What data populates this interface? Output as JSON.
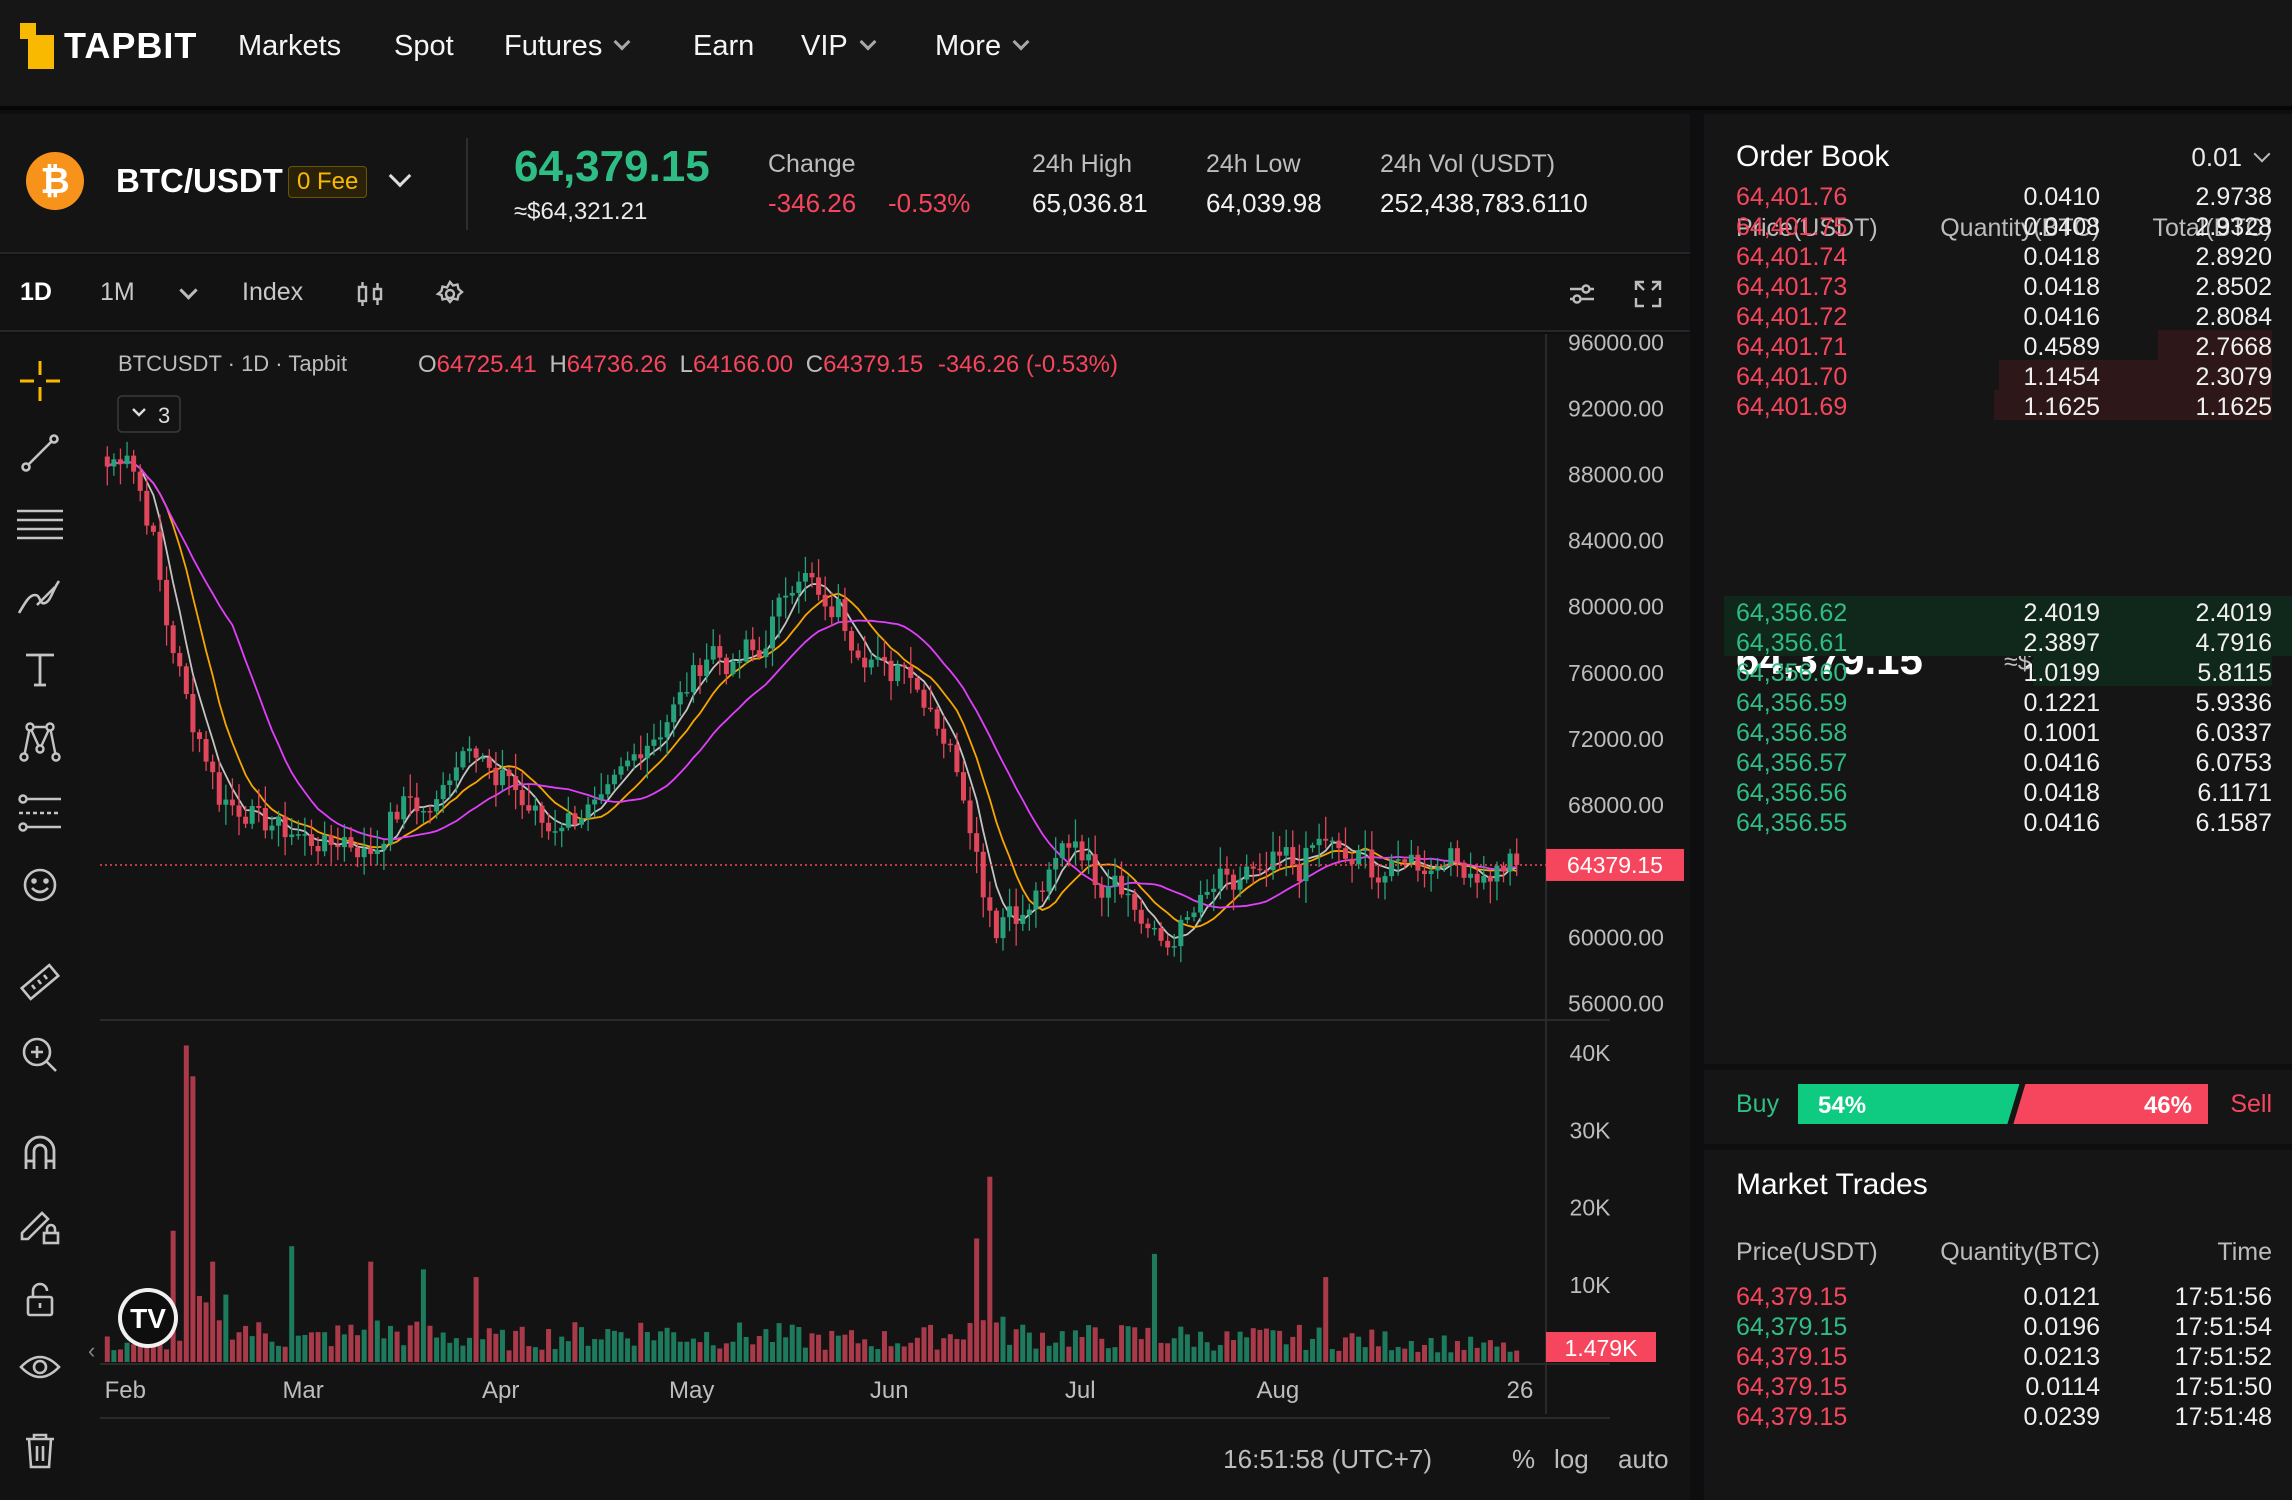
{
  "brand": {
    "name": "TAPBIT"
  },
  "nav": [
    {
      "label": "Markets",
      "dropdown": false
    },
    {
      "label": "Spot",
      "dropdown": false
    },
    {
      "label": "Futures",
      "dropdown": true
    },
    {
      "label": "Earn",
      "dropdown": false
    },
    {
      "label": "VIP",
      "dropdown": true
    },
    {
      "label": "More",
      "dropdown": true
    }
  ],
  "ticker": {
    "coin_symbol": "₿",
    "pair": "BTC/USDT",
    "fee_badge": "0 Fee",
    "last_price": "64,379.15",
    "last_usd": "≈$64,321.21",
    "change_label": "Change",
    "change_abs": "-346.26",
    "change_pct": "-0.53%",
    "high_label": "24h High",
    "high": "65,036.81",
    "low_label": "24h Low",
    "low": "64,039.98",
    "vol_label": "24h Vol (USDT)",
    "vol": "252,438,783.6110"
  },
  "toolbar": {
    "interval_1d": "1D",
    "interval_1m": "1M",
    "index": "Index"
  },
  "chart": {
    "legend_symbol": "BTCUSDT",
    "legend_interval": "1D",
    "legend_exchange": "Tapbit",
    "ohlc": {
      "o_label": "O",
      "o": "64725.41",
      "h_label": "H",
      "h": "64736.26",
      "l_label": "L",
      "l": "64166.00",
      "c_label": "C",
      "c": "64379.15",
      "chg": "-346.26 (-0.53%)"
    },
    "indicators_count": "3",
    "current_price_label": "64379.15",
    "current_volume_label": "1.479K",
    "time_label": "16:51:58 (UTC+7)",
    "bottom_controls": [
      "%",
      "log",
      "auto"
    ]
  },
  "chart_data": {
    "type": "candlestick",
    "symbol": "BTCUSDT",
    "interval": "1D",
    "price_ticks": [
      56000,
      60000,
      64000,
      68000,
      72000,
      76000,
      80000,
      84000,
      88000,
      92000,
      96000
    ],
    "price_tick_labels": [
      "56000.00",
      "60000.00",
      "68000.00",
      "72000.00",
      "76000.00",
      "80000.00",
      "84000.00",
      "88000.00",
      "92000.00",
      "96000.00"
    ],
    "ylim": [
      55000,
      96500
    ],
    "volume_ticks": [
      "10K",
      "20K",
      "30K",
      "40K"
    ],
    "volume_ylim": [
      0,
      43000
    ],
    "x_labels": [
      "Feb",
      "Mar",
      "Apr",
      "May",
      "Jun",
      "Jul",
      "Aug",
      "26"
    ],
    "current_price": 64379.15,
    "current_volume": 1479,
    "ma_series": [
      {
        "color": "#ffffff",
        "period": 5
      },
      {
        "color": "#f7a600",
        "period": 10
      },
      {
        "color": "#e040fb",
        "period": 20
      }
    ],
    "close_path": [
      [
        0,
        88500
      ],
      [
        3,
        89500
      ],
      [
        5,
        87000
      ],
      [
        7,
        84000
      ],
      [
        9,
        79000
      ],
      [
        11,
        76000
      ],
      [
        13,
        73000
      ],
      [
        15,
        71000
      ],
      [
        17,
        68500
      ],
      [
        19,
        68000
      ],
      [
        21,
        67500
      ],
      [
        24,
        67000
      ],
      [
        27,
        66500
      ],
      [
        30,
        66000
      ],
      [
        33,
        65500
      ],
      [
        36,
        66000
      ],
      [
        39,
        65000
      ],
      [
        41,
        65500
      ],
      [
        43,
        67000
      ],
      [
        46,
        68500
      ],
      [
        48,
        67500
      ],
      [
        50,
        68000
      ],
      [
        52,
        70000
      ],
      [
        55,
        72000
      ],
      [
        57,
        71000
      ],
      [
        59,
        69000
      ],
      [
        61,
        70000
      ],
      [
        63,
        68000
      ],
      [
        65,
        67500
      ],
      [
        67,
        66500
      ],
      [
        69,
        67000
      ],
      [
        72,
        67500
      ],
      [
        75,
        68000
      ],
      [
        78,
        70000
      ],
      [
        81,
        71500
      ],
      [
        84,
        72500
      ],
      [
        87,
        74500
      ],
      [
        90,
        76500
      ],
      [
        92,
        77500
      ],
      [
        95,
        76000
      ],
      [
        97,
        77500
      ],
      [
        99,
        77000
      ],
      [
        101,
        79000
      ],
      [
        103,
        81000
      ],
      [
        105,
        82000
      ],
      [
        107,
        81500
      ],
      [
        109,
        79500
      ],
      [
        111,
        80000
      ],
      [
        113,
        78000
      ],
      [
        115,
        77000
      ],
      [
        117,
        76500
      ],
      [
        119,
        76000
      ],
      [
        121,
        77000
      ],
      [
        123,
        75000
      ],
      [
        125,
        74000
      ],
      [
        127,
        72000
      ],
      [
        129,
        70500
      ],
      [
        131,
        67000
      ],
      [
        133,
        63000
      ],
      [
        135,
        60500
      ],
      [
        137,
        62000
      ],
      [
        139,
        61000
      ],
      [
        141,
        62500
      ],
      [
        143,
        63500
      ],
      [
        145,
        65500
      ],
      [
        147,
        66000
      ],
      [
        149,
        64500
      ],
      [
        151,
        63000
      ],
      [
        153,
        64000
      ],
      [
        155,
        62500
      ],
      [
        157,
        61000
      ],
      [
        159,
        60000
      ],
      [
        161,
        59500
      ],
      [
        163,
        60500
      ],
      [
        165,
        61500
      ],
      [
        167,
        62500
      ],
      [
        169,
        63500
      ],
      [
        171,
        63000
      ],
      [
        173,
        64000
      ],
      [
        175,
        63500
      ],
      [
        177,
        64500
      ],
      [
        179,
        65000
      ],
      [
        181,
        64000
      ],
      [
        183,
        65500
      ],
      [
        185,
        66000
      ],
      [
        187,
        65000
      ],
      [
        189,
        64500
      ],
      [
        191,
        65000
      ],
      [
        193,
        63500
      ],
      [
        195,
        64000
      ],
      [
        197,
        65000
      ],
      [
        199,
        64500
      ],
      [
        201,
        64000
      ],
      [
        203,
        65000
      ],
      [
        205,
        64500
      ],
      [
        207,
        64000
      ],
      [
        209,
        63500
      ],
      [
        211,
        64000
      ],
      [
        213,
        64500
      ],
      [
        214,
        64379
      ]
    ],
    "volume_profile": [
      [
        0,
        2000
      ],
      [
        10,
        2500
      ],
      [
        14,
        5000
      ],
      [
        17,
        7000
      ],
      [
        20,
        4000
      ],
      [
        24,
        3000
      ],
      [
        30,
        2500
      ],
      [
        40,
        3500
      ],
      [
        50,
        3000
      ],
      [
        60,
        2500
      ],
      [
        70,
        3000
      ],
      [
        80,
        3500
      ],
      [
        90,
        3000
      ],
      [
        100,
        3000
      ],
      [
        110,
        2500
      ],
      [
        120,
        2500
      ],
      [
        128,
        3000
      ],
      [
        132,
        5000
      ],
      [
        136,
        3500
      ],
      [
        140,
        3000
      ],
      [
        150,
        2800
      ],
      [
        160,
        3000
      ],
      [
        170,
        2500
      ],
      [
        180,
        2800
      ],
      [
        190,
        2500
      ],
      [
        200,
        2300
      ],
      [
        214,
        1500
      ]
    ],
    "volume_spikes": [
      [
        10,
        17000
      ],
      [
        12,
        41000
      ],
      [
        13,
        37000
      ],
      [
        16,
        13000
      ],
      [
        28,
        15000
      ],
      [
        40,
        13000
      ],
      [
        48,
        12000
      ],
      [
        56,
        11000
      ],
      [
        132,
        16000
      ],
      [
        134,
        24000
      ],
      [
        159,
        14000
      ],
      [
        185,
        11000
      ]
    ]
  },
  "orderbook": {
    "title": "Order Book",
    "precision": "0.01",
    "headers": {
      "price": "Price(USDT)",
      "qty": "Quantity(BTC)",
      "total": "Total(BTC)"
    },
    "asks": [
      {
        "price": "64,401.76",
        "qty": "0.0410",
        "total": "2.9738",
        "depth": 0
      },
      {
        "price": "64,401.75",
        "qty": "0.0408",
        "total": "2.9328",
        "depth": 0
      },
      {
        "price": "64,401.74",
        "qty": "0.0418",
        "total": "2.8920",
        "depth": 0
      },
      {
        "price": "64,401.73",
        "qty": "0.0418",
        "total": "2.8502",
        "depth": 0
      },
      {
        "price": "64,401.72",
        "qty": "0.0416",
        "total": "2.8084",
        "depth": 0
      },
      {
        "price": "64,401.71",
        "qty": "0.4589",
        "total": "2.7668",
        "depth": 0.2
      },
      {
        "price": "64,401.70",
        "qty": "1.1454",
        "total": "2.3079",
        "depth": 0.48
      },
      {
        "price": "64,401.69",
        "qty": "1.1625",
        "total": "1.1625",
        "depth": 0.49
      }
    ],
    "mid_price": "64,379.15",
    "mid_usd": "≈$64,321.21",
    "bids": [
      {
        "price": "64,356.62",
        "qty": "2.4019",
        "total": "2.4019",
        "depth": 1.0
      },
      {
        "price": "64,356.61",
        "qty": "2.3897",
        "total": "4.7916",
        "depth": 1.0
      },
      {
        "price": "64,356.60",
        "qty": "1.0199",
        "total": "5.8115",
        "depth": 0.42
      },
      {
        "price": "64,356.59",
        "qty": "0.1221",
        "total": "5.9336",
        "depth": 0
      },
      {
        "price": "64,356.58",
        "qty": "0.1001",
        "total": "6.0337",
        "depth": 0
      },
      {
        "price": "64,356.57",
        "qty": "0.0416",
        "total": "6.0753",
        "depth": 0
      },
      {
        "price": "64,356.56",
        "qty": "0.0418",
        "total": "6.1171",
        "depth": 0
      },
      {
        "price": "64,356.55",
        "qty": "0.0416",
        "total": "6.1587",
        "depth": 0
      }
    ],
    "buy_label": "Buy",
    "sell_label": "Sell",
    "buy_pct": "54%",
    "sell_pct": "46%",
    "buy_fraction": 0.54
  },
  "trades": {
    "title": "Market Trades",
    "headers": {
      "price": "Price(USDT)",
      "qty": "Quantity(BTC)",
      "time": "Time"
    },
    "rows": [
      {
        "price": "64,379.15",
        "qty": "0.0121",
        "time": "17:51:56",
        "side": "sell"
      },
      {
        "price": "64,379.15",
        "qty": "0.0196",
        "time": "17:51:54",
        "side": "buy"
      },
      {
        "price": "64,379.15",
        "qty": "0.0213",
        "time": "17:51:52",
        "side": "sell"
      },
      {
        "price": "64,379.15",
        "qty": "0.0114",
        "time": "17:51:50",
        "side": "sell"
      },
      {
        "price": "64,379.15",
        "qty": "0.0239",
        "time": "17:51:48",
        "side": "sell"
      }
    ]
  },
  "colors": {
    "up": "#2ebd85",
    "down": "#f6465d",
    "brand": "#f8b900",
    "background": "#0e0e10"
  },
  "icons": [
    "crosshair-icon",
    "trend-line-icon",
    "fib-icon",
    "brush-icon",
    "text-icon",
    "pattern-icon",
    "projection-icon",
    "emoji-icon",
    "ruler-icon",
    "zoom-in-icon",
    "magnet-icon",
    "lock-drawing-icon",
    "lock-icon",
    "eye-icon",
    "trash-icon",
    "settings-gear-icon",
    "candles-icon",
    "chart-settings-icon",
    "fullscreen-icon",
    "tradingview-logo"
  ]
}
